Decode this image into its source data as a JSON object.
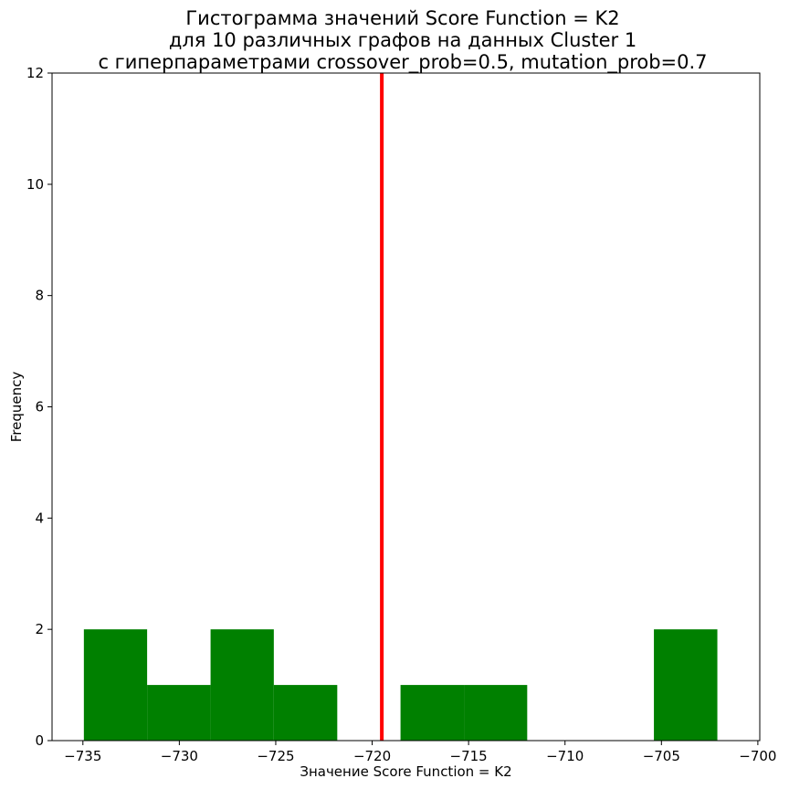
{
  "chart_data": {
    "type": "bar",
    "title_lines": [
      "Гистограмма значений Score Function = K2",
      "для 10 различных графов на данных Cluster 1",
      "с гиперпараметрами crossover_prob=0.5, mutation_prob=0.7"
    ],
    "xlabel": "Значение Score Function = K2",
    "ylabel": "Frequency",
    "xlim": [
      -736.6,
      -699.9
    ],
    "ylim": [
      0,
      12
    ],
    "x_ticks": [
      -735,
      -730,
      -725,
      -720,
      -715,
      -710,
      -705,
      -700
    ],
    "x_tick_labels": [
      "−735",
      "−730",
      "−725",
      "−720",
      "−715",
      "−710",
      "−705",
      "−700"
    ],
    "y_ticks": [
      0,
      2,
      4,
      6,
      8,
      10,
      12
    ],
    "y_tick_labels": [
      "0",
      "2",
      "4",
      "6",
      "8",
      "10",
      "12"
    ],
    "bins": [
      {
        "x0": -734.95,
        "x1": -731.67,
        "count": 2
      },
      {
        "x0": -731.67,
        "x1": -728.38,
        "count": 1
      },
      {
        "x0": -728.38,
        "x1": -725.1,
        "count": 2
      },
      {
        "x0": -725.1,
        "x1": -721.81,
        "count": 1
      },
      {
        "x0": -721.81,
        "x1": -718.53,
        "count": 0
      },
      {
        "x0": -718.53,
        "x1": -715.24,
        "count": 1
      },
      {
        "x0": -715.24,
        "x1": -711.96,
        "count": 1
      },
      {
        "x0": -711.96,
        "x1": -708.67,
        "count": 0
      },
      {
        "x0": -708.67,
        "x1": -705.39,
        "count": 0
      },
      {
        "x0": -705.39,
        "x1": -702.1,
        "count": 2
      }
    ],
    "mean_line": {
      "x": -719.5
    },
    "grid": false,
    "colors": {
      "bar": "#008000",
      "mean_line": "#ff0000",
      "axis": "#000000"
    }
  }
}
